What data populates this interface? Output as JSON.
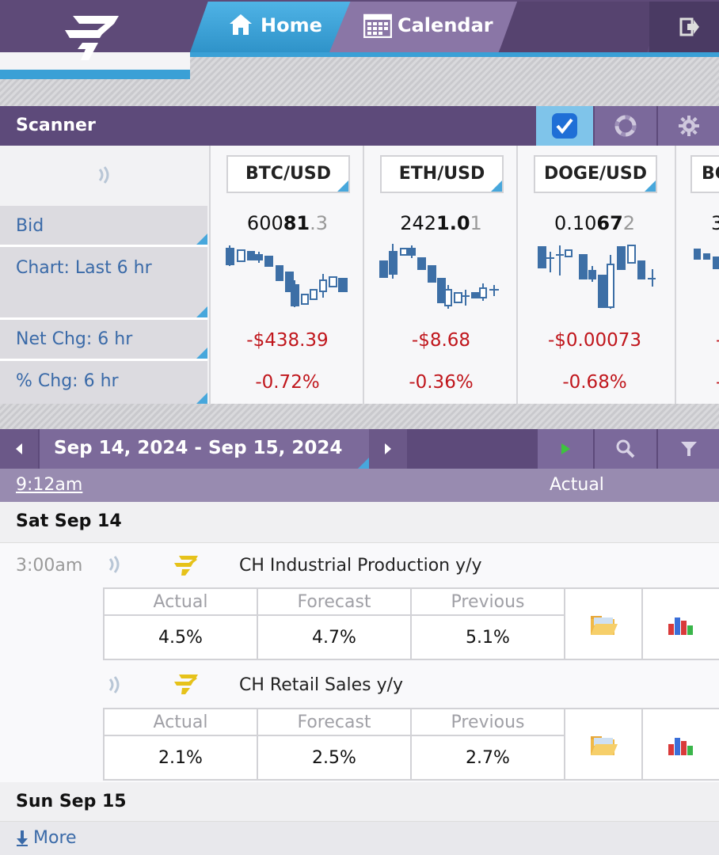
{
  "nav": {
    "home_label": "Home",
    "calendar_label": "Calendar"
  },
  "scanner": {
    "title": "Scanner",
    "row_labels": {
      "bid": "Bid",
      "chart": "Chart: Last 6 hr",
      "net_chg": "Net Chg: 6 hr",
      "pct_chg": "% Chg: 6 hr"
    },
    "columns": [
      {
        "symbol": "BTC/USD",
        "bid_pre": "600",
        "bid_big": "81",
        "bid_dot": ".",
        "bid_dim": "3",
        "net_chg": "-$438.39",
        "pct_chg": "-0.72%"
      },
      {
        "symbol": "ETH/USD",
        "bid_pre": "242",
        "bid_big": "1.0",
        "bid_dot": "",
        "bid_dim": "1",
        "net_chg": "-$8.68",
        "pct_chg": "-0.36%"
      },
      {
        "symbol": "DOGE/USD",
        "bid_pre": "0.10",
        "bid_big": "67",
        "bid_dot": "",
        "bid_dim": "2",
        "net_chg": "-$0.00073",
        "pct_chg": "-0.68%"
      },
      {
        "symbol": "BC",
        "bid_pre": "3",
        "bid_big": "",
        "bid_dot": "",
        "bid_dim": "",
        "net_chg": "-",
        "pct_chg": "-"
      }
    ],
    "checkbox_checked": true
  },
  "calendar": {
    "date_range": "Sep 14, 2024 - Sep 15, 2024",
    "current_time": "9:12am",
    "actual_header": "Actual",
    "days": [
      {
        "label": "Sat Sep 14"
      },
      {
        "label": "Sun Sep 15"
      }
    ],
    "events": [
      {
        "time": "3:00am",
        "title": "CH Industrial Production y/y",
        "actual_label": "Actual",
        "forecast_label": "Forecast",
        "previous_label": "Previous",
        "actual": "4.5%",
        "forecast": "4.7%",
        "previous": "5.1%"
      },
      {
        "time": "",
        "title": "CH Retail Sales y/y",
        "actual_label": "Actual",
        "forecast_label": "Forecast",
        "previous_label": "Previous",
        "actual": "2.1%",
        "forecast": "2.5%",
        "previous": "2.7%"
      }
    ],
    "more_label": "More"
  },
  "colors": {
    "header_purple": "#5d4a7a",
    "accent_blue": "#3aa0d6",
    "negative_red": "#c0161c",
    "label_blue": "#3a6aa8"
  }
}
